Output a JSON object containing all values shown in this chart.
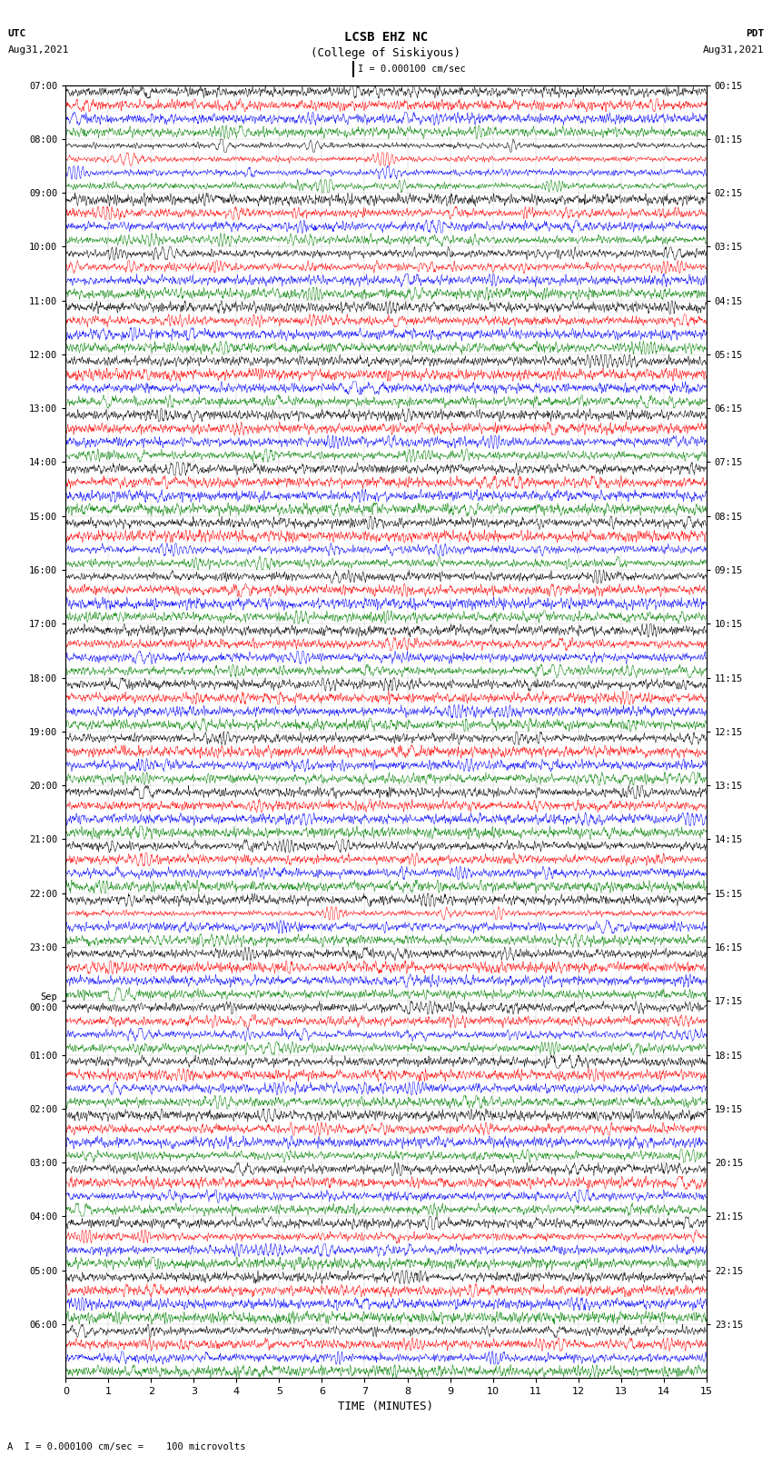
{
  "title_line1": "LCSB EHZ NC",
  "title_line2": "(College of Siskiyous)",
  "scale_label": "I = 0.000100 cm/sec",
  "left_label_utc": "UTC",
  "left_label_date": "Aug31,2021",
  "right_label_pdt": "PDT",
  "right_label_date": "Aug31,2021",
  "bottom_label": "TIME (MINUTES)",
  "footnote": "A  I = 0.000100 cm/sec =    100 microvolts",
  "left_times": [
    "07:00",
    "08:00",
    "09:00",
    "10:00",
    "11:00",
    "12:00",
    "13:00",
    "14:00",
    "15:00",
    "16:00",
    "17:00",
    "18:00",
    "19:00",
    "20:00",
    "21:00",
    "22:00",
    "23:00",
    "Sep\n00:00",
    "01:00",
    "02:00",
    "03:00",
    "04:00",
    "05:00",
    "06:00"
  ],
  "right_times": [
    "00:15",
    "01:15",
    "02:15",
    "03:15",
    "04:15",
    "05:15",
    "06:15",
    "07:15",
    "08:15",
    "09:15",
    "10:15",
    "11:15",
    "12:15",
    "13:15",
    "14:15",
    "15:15",
    "16:15",
    "17:15",
    "18:15",
    "19:15",
    "20:15",
    "21:15",
    "22:15",
    "23:15"
  ],
  "colors": [
    "black",
    "red",
    "blue",
    "green"
  ],
  "n_rows": 24,
  "traces_per_row": 4,
  "x_ticks": [
    0,
    1,
    2,
    3,
    4,
    5,
    6,
    7,
    8,
    9,
    10,
    11,
    12,
    13,
    14,
    15
  ],
  "figsize": [
    8.5,
    16.13
  ],
  "dpi": 100,
  "bg_color": "white",
  "seed": 42
}
